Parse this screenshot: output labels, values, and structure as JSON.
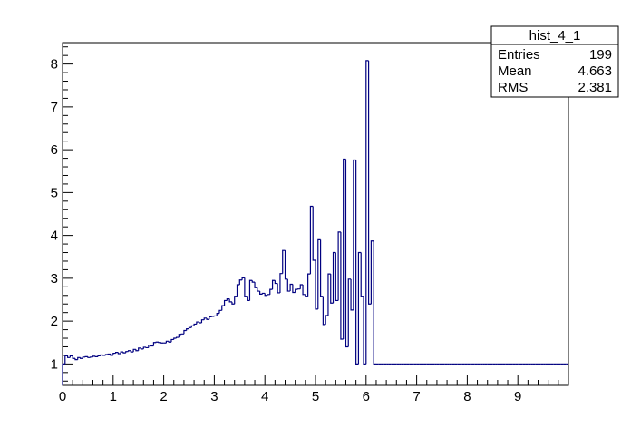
{
  "chart_data": {
    "type": "histogram",
    "title": "",
    "xlabel": "",
    "ylabel": "",
    "xlim": [
      0,
      10
    ],
    "ylim": [
      0.5,
      8.5
    ],
    "x_ticks": [
      "0",
      "1",
      "2",
      "3",
      "4",
      "5",
      "6",
      "7",
      "8",
      "9"
    ],
    "y_ticks": [
      "1",
      "2",
      "3",
      "4",
      "5",
      "6",
      "7",
      "8"
    ],
    "grid": false,
    "line_color": "#000080",
    "bin_width": 0.05,
    "bins": [
      [
        0.0,
        1.0
      ],
      [
        0.05,
        1.19
      ],
      [
        0.1,
        1.15
      ],
      [
        0.15,
        1.19
      ],
      [
        0.2,
        1.13
      ],
      [
        0.25,
        1.1
      ],
      [
        0.3,
        1.15
      ],
      [
        0.35,
        1.13
      ],
      [
        0.4,
        1.16
      ],
      [
        0.45,
        1.17
      ],
      [
        0.5,
        1.15
      ],
      [
        0.55,
        1.16
      ],
      [
        0.6,
        1.18
      ],
      [
        0.65,
        1.17
      ],
      [
        0.7,
        1.19
      ],
      [
        0.75,
        1.21
      ],
      [
        0.8,
        1.2
      ],
      [
        0.85,
        1.22
      ],
      [
        0.9,
        1.23
      ],
      [
        0.95,
        1.2
      ],
      [
        1.0,
        1.25
      ],
      [
        1.05,
        1.27
      ],
      [
        1.1,
        1.24
      ],
      [
        1.15,
        1.28
      ],
      [
        1.2,
        1.26
      ],
      [
        1.25,
        1.29
      ],
      [
        1.3,
        1.31
      ],
      [
        1.35,
        1.28
      ],
      [
        1.4,
        1.34
      ],
      [
        1.45,
        1.31
      ],
      [
        1.5,
        1.37
      ],
      [
        1.55,
        1.35
      ],
      [
        1.6,
        1.39
      ],
      [
        1.65,
        1.38
      ],
      [
        1.7,
        1.44
      ],
      [
        1.75,
        1.42
      ],
      [
        1.8,
        1.5
      ],
      [
        1.85,
        1.51
      ],
      [
        1.9,
        1.5
      ],
      [
        1.95,
        1.49
      ],
      [
        2.0,
        1.49
      ],
      [
        2.05,
        1.53
      ],
      [
        2.1,
        1.51
      ],
      [
        2.15,
        1.57
      ],
      [
        2.2,
        1.6
      ],
      [
        2.25,
        1.62
      ],
      [
        2.3,
        1.69
      ],
      [
        2.35,
        1.7
      ],
      [
        2.4,
        1.78
      ],
      [
        2.45,
        1.82
      ],
      [
        2.5,
        1.85
      ],
      [
        2.55,
        1.89
      ],
      [
        2.6,
        1.93
      ],
      [
        2.65,
        1.98
      ],
      [
        2.7,
        1.96
      ],
      [
        2.75,
        2.03
      ],
      [
        2.8,
        2.07
      ],
      [
        2.85,
        2.04
      ],
      [
        2.9,
        2.1
      ],
      [
        2.95,
        2.11
      ],
      [
        3.0,
        2.12
      ],
      [
        3.05,
        2.18
      ],
      [
        3.1,
        2.25
      ],
      [
        3.15,
        2.36
      ],
      [
        3.2,
        2.48
      ],
      [
        3.25,
        2.52
      ],
      [
        3.3,
        2.45
      ],
      [
        3.35,
        2.4
      ],
      [
        3.4,
        2.58
      ],
      [
        3.45,
        2.85
      ],
      [
        3.5,
        2.96
      ],
      [
        3.55,
        3.01
      ],
      [
        3.6,
        2.58
      ],
      [
        3.65,
        2.48
      ],
      [
        3.7,
        2.95
      ],
      [
        3.75,
        2.91
      ],
      [
        3.8,
        2.78
      ],
      [
        3.85,
        2.7
      ],
      [
        3.9,
        2.63
      ],
      [
        3.95,
        2.65
      ],
      [
        4.0,
        2.6
      ],
      [
        4.05,
        2.62
      ],
      [
        4.1,
        2.74
      ],
      [
        4.15,
        2.95
      ],
      [
        4.2,
        2.88
      ],
      [
        4.25,
        2.66
      ],
      [
        4.3,
        3.11
      ],
      [
        4.35,
        3.65
      ],
      [
        4.4,
        2.98
      ],
      [
        4.45,
        2.7
      ],
      [
        4.5,
        2.86
      ],
      [
        4.55,
        2.67
      ],
      [
        4.6,
        2.74
      ],
      [
        4.65,
        2.75
      ],
      [
        4.7,
        2.85
      ],
      [
        4.75,
        2.62
      ],
      [
        4.8,
        2.58
      ],
      [
        4.85,
        3.1
      ],
      [
        4.9,
        4.68
      ],
      [
        4.95,
        3.42
      ],
      [
        5.0,
        2.28
      ],
      [
        5.05,
        3.9
      ],
      [
        5.1,
        2.58
      ],
      [
        5.15,
        1.92
      ],
      [
        5.2,
        2.13
      ],
      [
        5.25,
        3.1
      ],
      [
        5.3,
        2.42
      ],
      [
        5.35,
        3.6
      ],
      [
        5.4,
        2.48
      ],
      [
        5.45,
        4.08
      ],
      [
        5.5,
        1.58
      ],
      [
        5.55,
        5.78
      ],
      [
        5.6,
        1.4
      ],
      [
        5.65,
        2.98
      ],
      [
        5.7,
        2.26
      ],
      [
        5.75,
        5.76
      ],
      [
        5.8,
        1.0
      ],
      [
        5.85,
        3.6
      ],
      [
        5.9,
        2.58
      ],
      [
        5.95,
        1.0
      ],
      [
        6.0,
        8.08
      ],
      [
        6.05,
        2.4
      ],
      [
        6.1,
        3.87
      ],
      [
        6.15,
        1.0
      ],
      [
        6.2,
        1.0
      ],
      [
        6.25,
        1.0
      ],
      [
        6.3,
        1.0
      ],
      [
        6.35,
        1.0
      ],
      [
        6.4,
        1.0
      ],
      [
        6.45,
        1.0
      ],
      [
        6.5,
        1.0
      ],
      [
        6.55,
        1.0
      ],
      [
        6.6,
        1.0
      ],
      [
        6.65,
        1.0
      ],
      [
        6.7,
        1.0
      ],
      [
        6.75,
        1.0
      ],
      [
        6.8,
        1.0
      ],
      [
        6.85,
        1.0
      ],
      [
        6.9,
        1.0
      ],
      [
        6.95,
        1.0
      ],
      [
        7.0,
        1.0
      ],
      [
        7.05,
        1.0
      ],
      [
        7.1,
        1.0
      ],
      [
        7.15,
        1.0
      ],
      [
        7.2,
        1.0
      ],
      [
        7.25,
        1.0
      ],
      [
        7.3,
        1.0
      ],
      [
        7.35,
        1.0
      ],
      [
        7.4,
        1.0
      ],
      [
        7.45,
        1.0
      ],
      [
        7.5,
        1.0
      ],
      [
        7.55,
        1.0
      ],
      [
        7.6,
        1.0
      ],
      [
        7.65,
        1.0
      ],
      [
        7.7,
        1.0
      ],
      [
        7.75,
        1.0
      ],
      [
        7.8,
        1.0
      ],
      [
        7.85,
        1.0
      ],
      [
        7.9,
        1.0
      ],
      [
        7.95,
        1.0
      ],
      [
        8.0,
        1.0
      ],
      [
        8.05,
        1.0
      ],
      [
        8.1,
        1.0
      ],
      [
        8.15,
        1.0
      ],
      [
        8.2,
        1.0
      ],
      [
        8.25,
        1.0
      ],
      [
        8.3,
        1.0
      ],
      [
        8.35,
        1.0
      ],
      [
        8.4,
        1.0
      ],
      [
        8.45,
        1.0
      ],
      [
        8.5,
        1.0
      ],
      [
        8.55,
        1.0
      ],
      [
        8.6,
        1.0
      ],
      [
        8.65,
        1.0
      ],
      [
        8.7,
        1.0
      ],
      [
        8.75,
        1.0
      ],
      [
        8.8,
        1.0
      ],
      [
        8.85,
        1.0
      ],
      [
        8.9,
        1.0
      ],
      [
        8.95,
        1.0
      ],
      [
        9.0,
        1.0
      ],
      [
        9.05,
        1.0
      ],
      [
        9.1,
        1.0
      ],
      [
        9.15,
        1.0
      ],
      [
        9.2,
        1.0
      ],
      [
        9.25,
        1.0
      ],
      [
        9.3,
        1.0
      ],
      [
        9.35,
        1.0
      ],
      [
        9.4,
        1.0
      ],
      [
        9.45,
        1.0
      ],
      [
        9.5,
        1.0
      ],
      [
        9.55,
        1.0
      ],
      [
        9.6,
        1.0
      ],
      [
        9.65,
        1.0
      ],
      [
        9.7,
        1.0
      ],
      [
        9.75,
        1.0
      ],
      [
        9.8,
        1.0
      ],
      [
        9.85,
        1.0
      ],
      [
        9.9,
        1.0
      ],
      [
        9.95,
        1.0
      ]
    ]
  },
  "stats_box": {
    "name": "hist_4_1",
    "entries_label": "Entries",
    "entries_value": "199",
    "mean_label": "Mean",
    "mean_value": "4.663",
    "rms_label": "RMS",
    "rms_value": "2.381"
  }
}
